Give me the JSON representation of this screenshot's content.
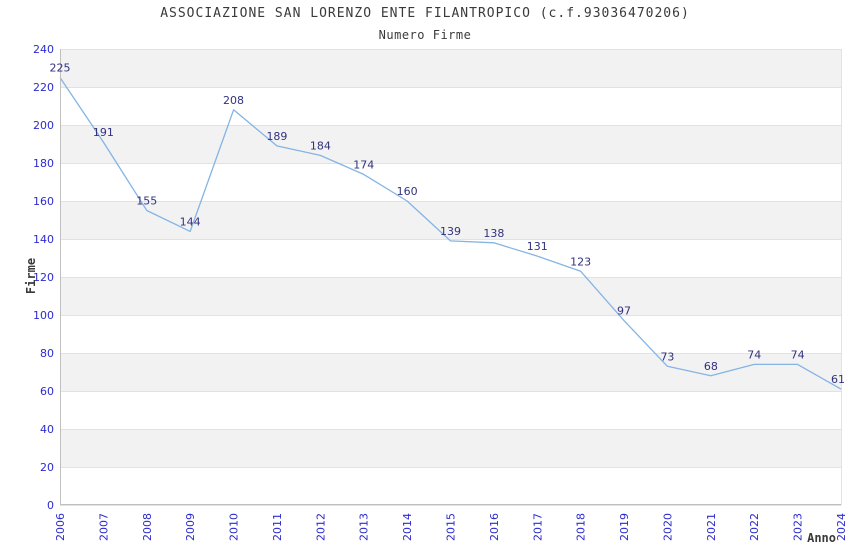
{
  "chart_data": {
    "type": "line",
    "title": "ASSOCIAZIONE SAN LORENZO ENTE FILANTROPICO (c.f.93036470206)",
    "subtitle": "Numero Firme",
    "xlabel": "Anno",
    "ylabel": "Firme",
    "x": [
      "2006",
      "2007",
      "2008",
      "2009",
      "2010",
      "2011",
      "2012",
      "2013",
      "2014",
      "2015",
      "2016",
      "2017",
      "2018",
      "2019",
      "2020",
      "2021",
      "2022",
      "2023",
      "2024"
    ],
    "values": [
      225,
      191,
      155,
      144,
      208,
      189,
      184,
      174,
      160,
      139,
      138,
      131,
      123,
      97,
      73,
      68,
      74,
      74,
      61
    ],
    "ylim": [
      0,
      240
    ],
    "ytick_step": 20,
    "grid": "horizontal-bands-alternating",
    "legend": "none",
    "colors": {
      "line": "#85b4e4",
      "tick_label": "#2b2bd0",
      "data_label": "#32327e",
      "band_gray": "#f2f2f2",
      "grid_line": "#e2e2e2",
      "axis_line": "#c0c0c0",
      "title_text": "#3a3a3a"
    }
  }
}
